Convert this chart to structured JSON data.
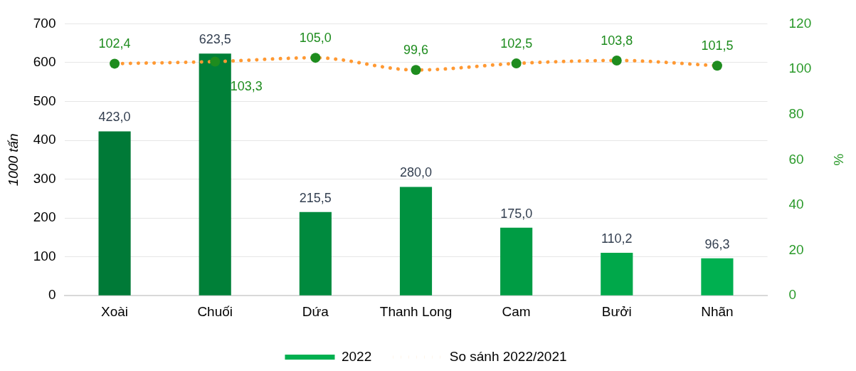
{
  "chart_data": {
    "type": "bar",
    "ylabel": "1000 tấn",
    "y2label": "%",
    "categories": [
      "Xoài",
      "Chuối",
      "Dứa",
      "Thanh Long",
      "Cam",
      "Bưởi",
      "Nhãn"
    ],
    "series": [
      {
        "name": "2022",
        "color": "#00b050",
        "colors": [
          "#007a37",
          "#008038",
          "#008a3e",
          "#009240",
          "#009c44",
          "#00a84a",
          "#00b050"
        ],
        "values": [
          423.0,
          623.5,
          215.5,
          280.0,
          175.0,
          110.2,
          96.3
        ],
        "value_labels": [
          "423,0",
          "623,5",
          "215,5",
          "280,0",
          "175,0",
          "110,2",
          "96,3"
        ]
      },
      {
        "name": "So sánh 2022/2021",
        "type": "line",
        "axis": "y2",
        "color": "#ff9933",
        "colors": [
          "#1e8c1e",
          "#1e8c1e",
          "#1e8c1e",
          "#1e8c1e",
          "#1e8c1e",
          "#1e8c1e",
          "#1e8c1e"
        ],
        "marker": "circle",
        "line_style": "dotted",
        "values": [
          102.4,
          103.3,
          105.0,
          99.6,
          102.5,
          103.8,
          101.5
        ],
        "value_labels": [
          "102,4",
          "103,3",
          "105,0",
          "99,6",
          "102,5",
          "103,8",
          "101,5"
        ]
      }
    ],
    "ylim": [
      0,
      700
    ],
    "yticks": [
      0,
      100,
      200,
      300,
      400,
      500,
      600,
      700
    ],
    "y2lim": [
      0,
      120
    ],
    "y2ticks": [
      0,
      20,
      40,
      60,
      80,
      100,
      120
    ],
    "grid": "y",
    "legend": "bottom"
  }
}
